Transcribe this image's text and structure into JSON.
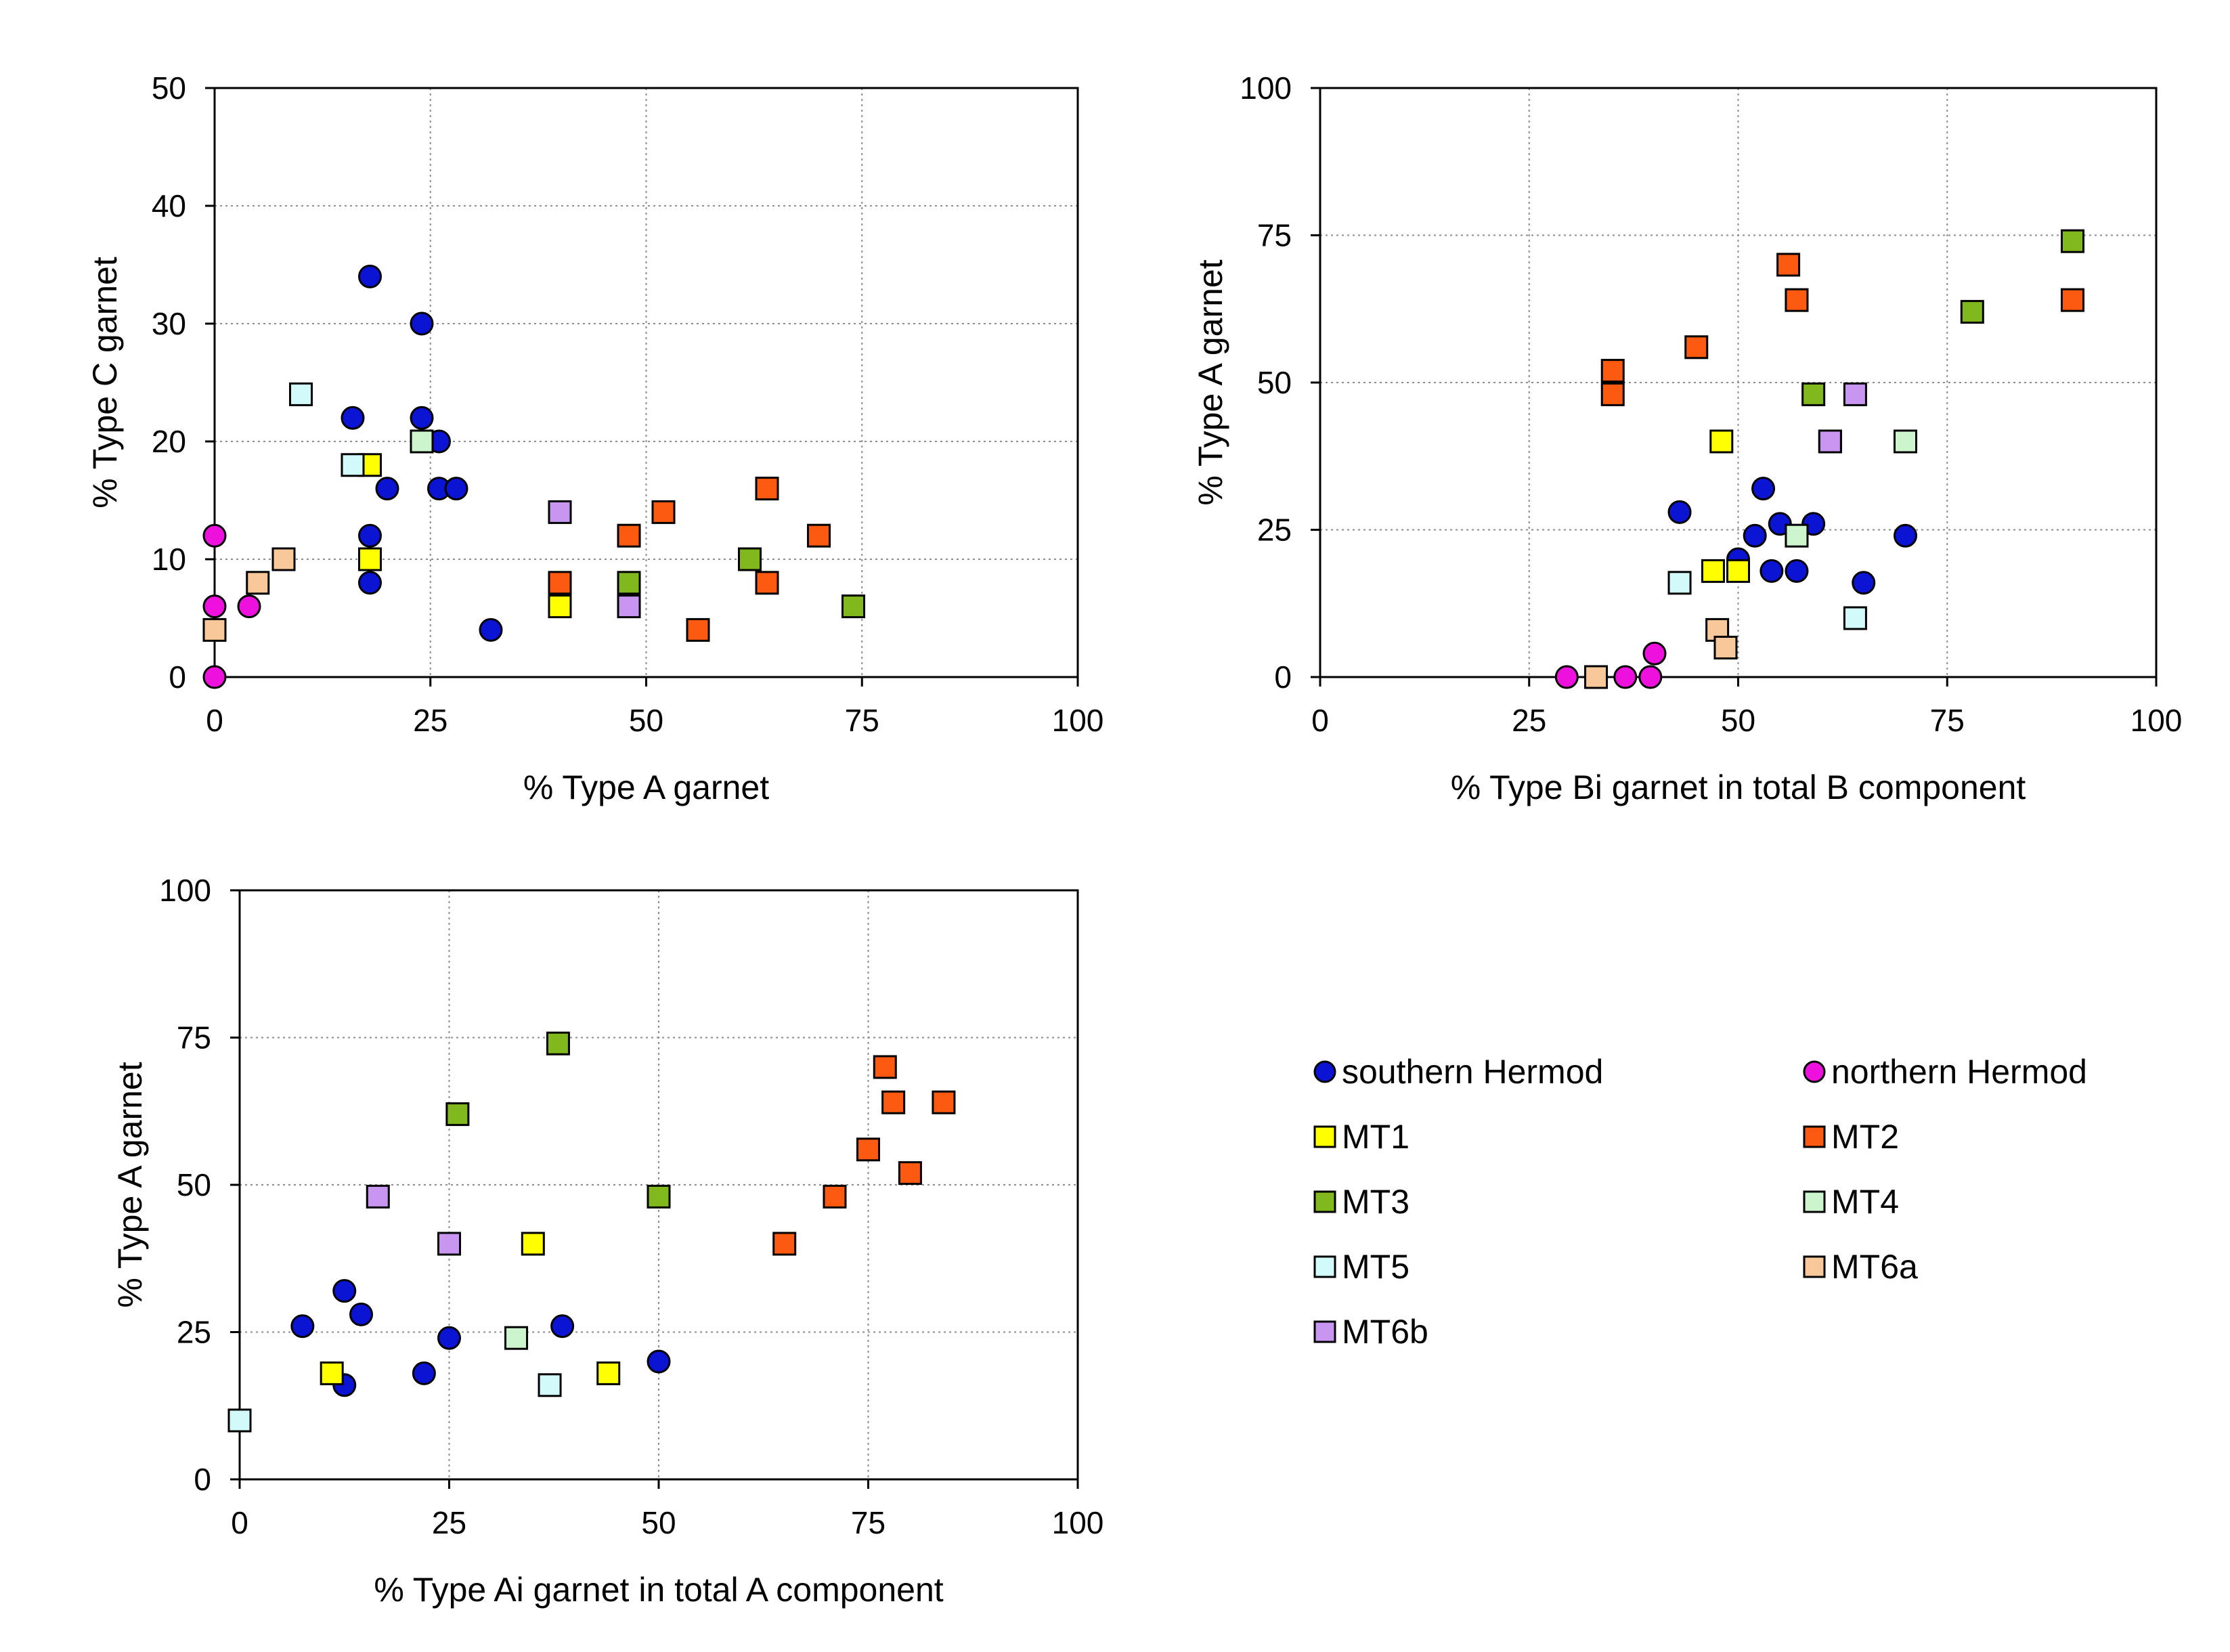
{
  "series_styles": {
    "southern Hermod": {
      "shape": "circle",
      "color": "#0a14d2"
    },
    "northern Hermod": {
      "shape": "circle",
      "color": "#ee10dc"
    },
    "MT1": {
      "shape": "square",
      "color": "#ffff00"
    },
    "MT2": {
      "shape": "square",
      "color": "#fc5a10"
    },
    "MT3": {
      "shape": "square",
      "color": "#80b81e"
    },
    "MT4": {
      "shape": "square",
      "color": "#cdf5cd"
    },
    "MT5": {
      "shape": "square",
      "color": "#d2fafa"
    },
    "MT6a": {
      "shape": "square",
      "color": "#f8c89a"
    },
    "MT6b": {
      "shape": "square",
      "color": "#c896f0"
    }
  },
  "legend": {
    "items": [
      {
        "name": "southern Hermod"
      },
      {
        "name": "northern Hermod"
      },
      {
        "name": "MT1"
      },
      {
        "name": "MT2"
      },
      {
        "name": "MT3"
      },
      {
        "name": "MT4"
      },
      {
        "name": "MT5"
      },
      {
        "name": "MT6a"
      },
      {
        "name": "MT6b"
      }
    ]
  },
  "chart_data": [
    {
      "id": "chart-a",
      "type": "scatter",
      "title": "",
      "xlabel": "% Type A garnet",
      "ylabel": "% Type C garnet",
      "xlim": [
        0,
        100
      ],
      "ylim": [
        0,
        50
      ],
      "xticks": [
        0,
        25,
        50,
        75,
        100
      ],
      "yticks": [
        0,
        10,
        20,
        30,
        40,
        50
      ],
      "grid": true,
      "series": [
        {
          "name": "southern Hermod",
          "points": [
            [
              18,
              34
            ],
            [
              24,
              30
            ],
            [
              16,
              22
            ],
            [
              24,
              22
            ],
            [
              26,
              20
            ],
            [
              20,
              16
            ],
            [
              26,
              16
            ],
            [
              28,
              16
            ],
            [
              18,
              12
            ],
            [
              18,
              8
            ],
            [
              32,
              4
            ]
          ]
        },
        {
          "name": "northern Hermod",
          "points": [
            [
              0,
              12
            ],
            [
              0,
              6
            ],
            [
              4,
              6
            ],
            [
              0,
              0
            ]
          ]
        },
        {
          "name": "MT1",
          "points": [
            [
              18,
              18
            ],
            [
              18,
              10
            ],
            [
              40,
              6
            ]
          ]
        },
        {
          "name": "MT2",
          "points": [
            [
              64,
              16
            ],
            [
              52,
              14
            ],
            [
              48,
              12
            ],
            [
              70,
              12
            ],
            [
              40,
              8
            ],
            [
              64,
              8
            ],
            [
              56,
              4
            ]
          ]
        },
        {
          "name": "MT3",
          "points": [
            [
              62,
              10
            ],
            [
              48,
              8
            ],
            [
              74,
              6
            ]
          ]
        },
        {
          "name": "MT4",
          "points": [
            [
              24,
              20
            ]
          ]
        },
        {
          "name": "MT5",
          "points": [
            [
              10,
              24
            ],
            [
              16,
              18
            ]
          ]
        },
        {
          "name": "MT6a",
          "points": [
            [
              8,
              10
            ],
            [
              5,
              8
            ],
            [
              0,
              4
            ]
          ]
        },
        {
          "name": "MT6b",
          "points": [
            [
              40,
              14
            ],
            [
              48,
              6
            ]
          ]
        }
      ]
    },
    {
      "id": "chart-b",
      "type": "scatter",
      "title": "",
      "xlabel": "% Type Bi garnet in total B component",
      "ylabel": "% Type A garnet",
      "xlim": [
        0,
        100
      ],
      "ylim": [
        0,
        100
      ],
      "xticks": [
        0,
        25,
        50,
        75,
        100
      ],
      "yticks": [
        0,
        25,
        50,
        75,
        100
      ],
      "grid": true,
      "series": [
        {
          "name": "southern Hermod",
          "points": [
            [
              43,
              28
            ],
            [
              53,
              32
            ],
            [
              52,
              24
            ],
            [
              55,
              26
            ],
            [
              59,
              26
            ],
            [
              70,
              24
            ],
            [
              50,
              20
            ],
            [
              54,
              18
            ],
            [
              57,
              18
            ],
            [
              65,
              16
            ]
          ]
        },
        {
          "name": "northern Hermod",
          "points": [
            [
              29.5,
              0
            ],
            [
              36.5,
              0
            ],
            [
              39.5,
              0
            ],
            [
              40,
              4
            ]
          ]
        },
        {
          "name": "MT1",
          "points": [
            [
              48,
              40
            ],
            [
              47,
              18
            ],
            [
              50,
              18
            ]
          ]
        },
        {
          "name": "MT2",
          "points": [
            [
              56,
              70
            ],
            [
              57,
              64
            ],
            [
              90,
              64
            ],
            [
              45,
              56
            ],
            [
              35,
              52
            ],
            [
              35,
              48
            ],
            [
              61,
              40
            ]
          ]
        },
        {
          "name": "MT3",
          "points": [
            [
              90,
              74
            ],
            [
              78,
              62
            ],
            [
              59,
              48
            ]
          ]
        },
        {
          "name": "MT4",
          "points": [
            [
              70,
              40
            ],
            [
              57,
              24
            ]
          ]
        },
        {
          "name": "MT5",
          "points": [
            [
              43,
              16
            ],
            [
              64,
              10
            ]
          ]
        },
        {
          "name": "MT6a",
          "points": [
            [
              33,
              0
            ],
            [
              47.5,
              8
            ],
            [
              48.5,
              5
            ]
          ]
        },
        {
          "name": "MT6b",
          "points": [
            [
              64,
              48
            ],
            [
              61,
              40
            ]
          ]
        }
      ]
    },
    {
      "id": "chart-c",
      "type": "scatter",
      "title": "",
      "xlabel": "% Type Ai garnet in total A component",
      "ylabel": "% Type A garnet",
      "xlim": [
        0,
        100
      ],
      "ylim": [
        0,
        100
      ],
      "xticks": [
        0,
        25,
        50,
        75,
        100
      ],
      "yticks": [
        0,
        25,
        50,
        75,
        100
      ],
      "grid": true,
      "series": [
        {
          "name": "southern Hermod",
          "points": [
            [
              7.5,
              26
            ],
            [
              12.5,
              32
            ],
            [
              14.5,
              28
            ],
            [
              25,
              24
            ],
            [
              38.5,
              26
            ],
            [
              22,
              18
            ],
            [
              12.5,
              16
            ],
            [
              50,
              20
            ]
          ]
        },
        {
          "name": "northern Hermod",
          "points": []
        },
        {
          "name": "MT1",
          "points": [
            [
              35,
              40
            ],
            [
              11,
              18
            ],
            [
              44,
              18
            ]
          ]
        },
        {
          "name": "MT2",
          "points": [
            [
              77,
              70
            ],
            [
              78,
              64
            ],
            [
              84,
              64
            ],
            [
              75,
              56
            ],
            [
              80,
              52
            ],
            [
              71,
              48
            ],
            [
              65,
              40
            ]
          ]
        },
        {
          "name": "MT3",
          "points": [
            [
              38,
              74
            ],
            [
              26,
              62
            ],
            [
              50,
              48
            ]
          ]
        },
        {
          "name": "MT4",
          "points": [
            [
              33,
              24
            ]
          ]
        },
        {
          "name": "MT5",
          "points": [
            [
              37,
              16
            ],
            [
              0,
              10
            ]
          ]
        },
        {
          "name": "MT6a",
          "points": []
        },
        {
          "name": "MT6b",
          "points": [
            [
              16.5,
              48
            ],
            [
              25,
              40
            ]
          ]
        }
      ]
    }
  ]
}
